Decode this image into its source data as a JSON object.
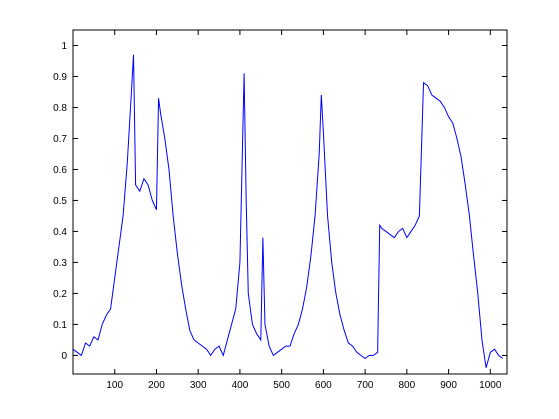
{
  "chart_data": {
    "type": "line",
    "color": "#0000ff",
    "x": [
      0,
      10,
      20,
      30,
      40,
      50,
      60,
      70,
      80,
      90,
      100,
      110,
      120,
      130,
      140,
      145,
      150,
      160,
      170,
      180,
      190,
      200,
      205,
      210,
      220,
      230,
      240,
      250,
      260,
      270,
      280,
      290,
      300,
      310,
      320,
      330,
      340,
      350,
      360,
      370,
      380,
      390,
      400,
      410,
      415,
      420,
      430,
      440,
      450,
      455,
      460,
      470,
      480,
      490,
      500,
      510,
      520,
      530,
      540,
      550,
      560,
      570,
      580,
      590,
      595,
      600,
      610,
      620,
      630,
      640,
      650,
      660,
      670,
      680,
      690,
      700,
      710,
      720,
      730,
      735,
      740,
      750,
      760,
      770,
      780,
      790,
      800,
      810,
      820,
      830,
      840,
      850,
      860,
      870,
      880,
      890,
      900,
      910,
      920,
      930,
      940,
      950,
      960,
      970,
      980,
      990,
      1000,
      1010,
      1020,
      1030
    ],
    "values": [
      0.02,
      0.01,
      0.0,
      0.04,
      0.03,
      0.06,
      0.05,
      0.1,
      0.13,
      0.15,
      0.25,
      0.35,
      0.45,
      0.62,
      0.85,
      0.97,
      0.55,
      0.53,
      0.57,
      0.55,
      0.5,
      0.47,
      0.83,
      0.78,
      0.7,
      0.6,
      0.45,
      0.33,
      0.23,
      0.15,
      0.08,
      0.05,
      0.04,
      0.03,
      0.02,
      0.0,
      0.02,
      0.03,
      0.0,
      0.05,
      0.1,
      0.15,
      0.3,
      0.91,
      0.5,
      0.2,
      0.1,
      0.07,
      0.05,
      0.38,
      0.1,
      0.03,
      0.0,
      0.01,
      0.02,
      0.03,
      0.03,
      0.07,
      0.1,
      0.15,
      0.22,
      0.32,
      0.45,
      0.65,
      0.84,
      0.72,
      0.45,
      0.3,
      0.2,
      0.13,
      0.08,
      0.04,
      0.03,
      0.01,
      0.0,
      -0.01,
      0.0,
      0.0,
      0.01,
      0.42,
      0.41,
      0.4,
      0.39,
      0.38,
      0.4,
      0.41,
      0.38,
      0.4,
      0.42,
      0.45,
      0.88,
      0.87,
      0.84,
      0.83,
      0.82,
      0.8,
      0.77,
      0.75,
      0.7,
      0.64,
      0.55,
      0.45,
      0.32,
      0.2,
      0.05,
      -0.04,
      0.01,
      0.02,
      0.0,
      -0.01
    ],
    "xlim": [
      0,
      1040
    ],
    "ylim": [
      -0.06,
      1.05
    ],
    "xticks": [
      100,
      200,
      300,
      400,
      500,
      600,
      700,
      800,
      900,
      1000
    ],
    "yticks": [
      0,
      0.1,
      0.2,
      0.3,
      0.4,
      0.5,
      0.6,
      0.7,
      0.8,
      0.9,
      1
    ]
  }
}
